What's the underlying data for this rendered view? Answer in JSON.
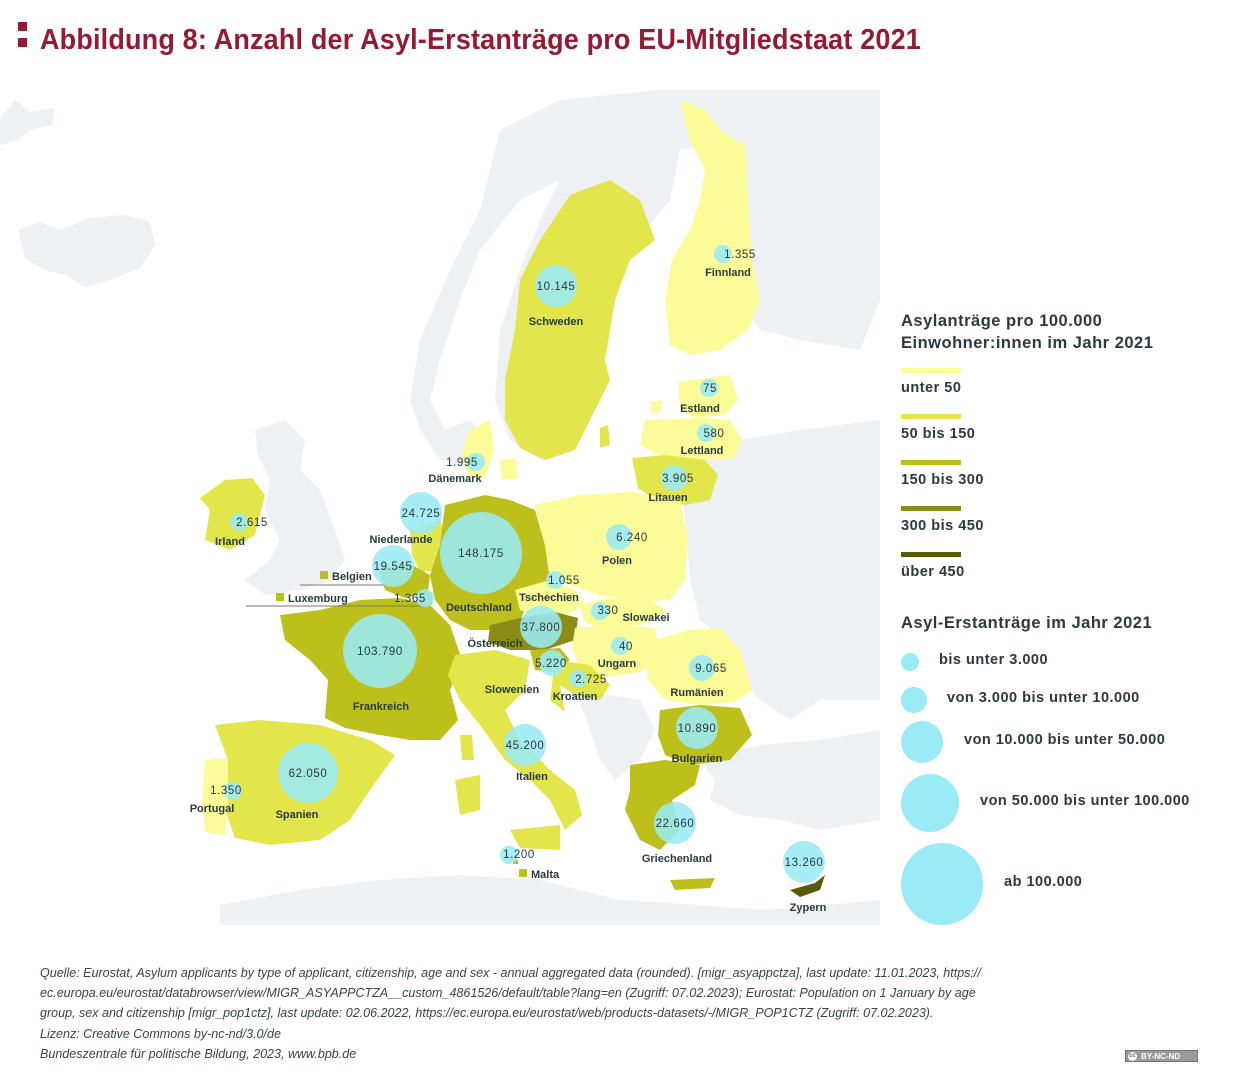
{
  "title": "Abbildung 8: Anzahl der Asyl-Erstanträge pro EU-Mitgliedstaat 2021",
  "colors": {
    "title": "#951b35",
    "sea": "#ffffff",
    "non_eu_land": "#edf1f3",
    "bubble": "#9aebf5",
    "class_colors": [
      "#fbfb98",
      "#e3e64b",
      "#bdc01a",
      "#8c8c16",
      "#575a06"
    ]
  },
  "legend": {
    "choropleth_title_line1": "Asylanträge pro 100.000",
    "choropleth_title_line2": "Einwohner:innen im Jahr 2021",
    "classes": [
      {
        "label": "unter 50",
        "color": "#fbfb98"
      },
      {
        "label": "50 bis 150",
        "color": "#e3e64b"
      },
      {
        "label": "150 bis 300",
        "color": "#bdc01a"
      },
      {
        "label": "300 bis 450",
        "color": "#8c8c16"
      },
      {
        "label": "über 450",
        "color": "#575a06"
      }
    ],
    "bubble_title": "Asyl-Erstanträge im Jahr 2021",
    "bubble_classes": [
      {
        "label": "bis unter 3.000"
      },
      {
        "label": "von 3.000 bis unter 10.000"
      },
      {
        "label": "von 10.000 bis unter 50.000"
      },
      {
        "label": "von 50.000 bis unter 100.000"
      },
      {
        "label": "ab 100.000"
      }
    ]
  },
  "chart_data": {
    "type": "choropleth-bubble-map",
    "title": "Abbildung 8: Anzahl der Asyl-Erstanträge pro EU-Mitgliedstaat 2021",
    "value_label": "Asyl-Erstanträge im Jahr 2021",
    "class_label": "Asylanträge pro 100.000 Einwohner:innen im Jahr 2021",
    "countries": [
      {
        "name": "Finnland",
        "value": "1.355",
        "class": 0
      },
      {
        "name": "Schweden",
        "value": "10.145",
        "class": 1
      },
      {
        "name": "Estland",
        "value": "75",
        "class": 0
      },
      {
        "name": "Lettland",
        "value": "580",
        "class": 0
      },
      {
        "name": "Litauen",
        "value": "3.905",
        "class": 1
      },
      {
        "name": "Dänemark",
        "value": "1.995",
        "class": 0
      },
      {
        "name": "Irland",
        "value": "2.615",
        "class": 1
      },
      {
        "name": "Niederlande",
        "value": "24.725",
        "class": 1
      },
      {
        "name": "Belgien",
        "value": "19.545",
        "class": 2
      },
      {
        "name": "Luxemburg",
        "value": "1.365",
        "class": 2
      },
      {
        "name": "Deutschland",
        "value": "148.175",
        "class": 2
      },
      {
        "name": "Polen",
        "value": "6.240",
        "class": 0
      },
      {
        "name": "Tschechien",
        "value": "1.055",
        "class": 0
      },
      {
        "name": "Slowakei",
        "value": "330",
        "class": 0
      },
      {
        "name": "Österreich",
        "value": "37.800",
        "class": 3
      },
      {
        "name": "Ungarn",
        "value": "40",
        "class": 0
      },
      {
        "name": "Slowenien",
        "value": "5.220",
        "class": 2
      },
      {
        "name": "Kroatien",
        "value": "2.725",
        "class": 1
      },
      {
        "name": "Rumänien",
        "value": "9.065",
        "class": 0
      },
      {
        "name": "Frankreich",
        "value": "103.790",
        "class": 2
      },
      {
        "name": "Bulgarien",
        "value": "10.890",
        "class": 2
      },
      {
        "name": "Italien",
        "value": "45.200",
        "class": 1
      },
      {
        "name": "Spanien",
        "value": "62.050",
        "class": 1
      },
      {
        "name": "Portugal",
        "value": "1.350",
        "class": 0
      },
      {
        "name": "Griechenland",
        "value": "22.660",
        "class": 2
      },
      {
        "name": "Malta",
        "value": "1.200",
        "class": 2
      },
      {
        "name": "Zypern",
        "value": "13.260",
        "class": 4
      }
    ]
  },
  "footer": {
    "lines": [
      "Quelle: Eurostat, Asylum applicants by type of applicant, citizenship, age and sex - annual aggregated data (rounded). [migr_asyappctza], last update: 11.01.2023, https://",
      "ec.europa.eu/eurostat/databrowser/view/MIGR_ASYAPPCTZA__custom_4861526/default/table?lang=en (Zugriff: 07.02.2023); Eurostat: Population on 1 January by age",
      "group, sex and citizenship [migr_pop1ctz], last update: 02.06.2022, https://ec.europa.eu/eurostat/web/products-datasets/-/MIGR_POP1CTZ (Zugriff: 07.02.2023).",
      "Lizenz: Creative Commons by-nc-nd/3.0/de",
      "Bundeszentrale für politische Bildung, 2023, www.bpb.de"
    ],
    "license_badge": "BY-NC-ND",
    "license_badge_icon": "cc"
  }
}
